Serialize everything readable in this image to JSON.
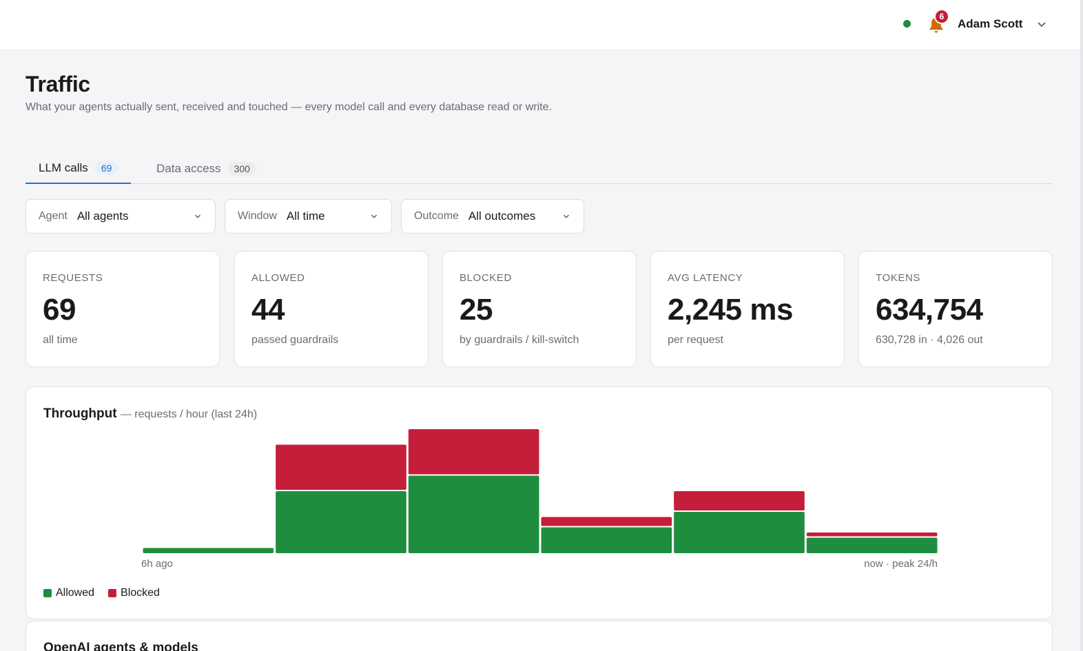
{
  "header": {
    "status_color": "#1e8e3e",
    "notifications_count": "6",
    "user_name": "Adam Scott",
    "icons": [
      "status-dot",
      "bell-icon",
      "chevron-down-icon"
    ]
  },
  "page": {
    "title": "Traffic",
    "subtitle": "What your agents actually sent, received and touched — every model call and every database read or write."
  },
  "tabs": [
    {
      "label": "LLM calls",
      "count": "69",
      "active": true
    },
    {
      "label": "Data access",
      "count": "300",
      "active": false
    }
  ],
  "filters": [
    {
      "label": "Agent",
      "value": "All agents"
    },
    {
      "label": "Window",
      "value": "All time"
    },
    {
      "label": "Outcome",
      "value": "All outcomes"
    }
  ],
  "stats": [
    {
      "label": "REQUESTS",
      "value": "69",
      "sub": "all time"
    },
    {
      "label": "ALLOWED",
      "value": "44",
      "sub": "passed guardrails"
    },
    {
      "label": "BLOCKED",
      "value": "25",
      "sub": "by guardrails / kill-switch"
    },
    {
      "label": "AVG LATENCY",
      "value": "2,245 ms",
      "sub": "per request"
    },
    {
      "label": "TOKENS",
      "value": "634,754",
      "sub": "630,728 in · 4,026 out"
    }
  ],
  "throughput": {
    "title": "Throughput",
    "subtitle": "— requests / hour (last 24h)",
    "start_label": "6h ago",
    "end_label": "now · peak 24/h"
  },
  "chart_data": {
    "type": "bar",
    "stacked": true,
    "categories": [
      "",
      "",
      "",
      "",
      "",
      ""
    ],
    "series": [
      {
        "name": "Allowed",
        "color": "#1e8e3e",
        "values": [
          1,
          12,
          15,
          5,
          8,
          3
        ]
      },
      {
        "name": "Blocked",
        "color": "#c41e3a",
        "values": [
          0,
          9,
          9,
          2,
          4,
          1
        ]
      }
    ],
    "ylim": [
      0,
      24
    ],
    "grid": false,
    "legend": "bottom-left"
  },
  "next_panel": {
    "title": "OpenAI agents & models"
  }
}
